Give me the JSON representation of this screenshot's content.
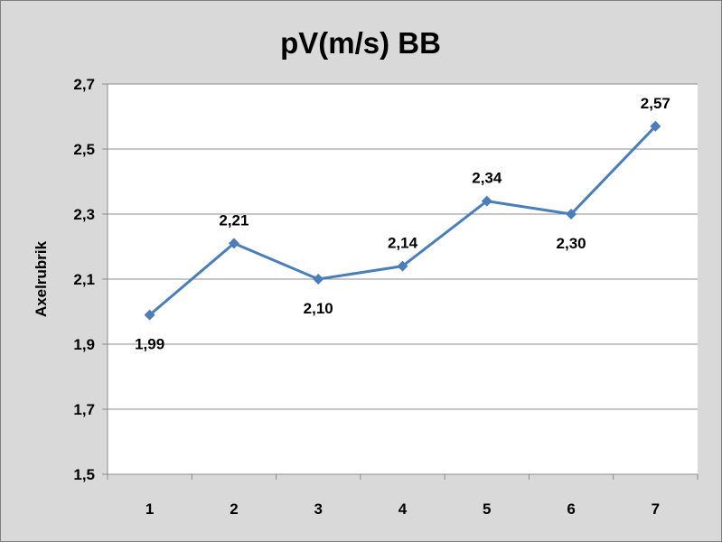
{
  "chart_data": {
    "type": "line",
    "title": "pV(m/s) BB",
    "xlabel": "",
    "ylabel": "Axelrubrik",
    "categories": [
      "1",
      "2",
      "3",
      "4",
      "5",
      "6",
      "7"
    ],
    "series": [
      {
        "values": [
          1.99,
          2.21,
          2.1,
          2.14,
          2.34,
          2.3,
          2.57
        ],
        "labels": [
          "1,99",
          "2,21",
          "2,10",
          "2,14",
          "2,34",
          "2,30",
          "2,57"
        ],
        "color": "#4a7ebb"
      }
    ],
    "ylim": [
      1.5,
      2.7
    ],
    "yticks": [
      1.5,
      1.7,
      1.9,
      2.1,
      2.3,
      2.5,
      2.7
    ],
    "ytick_labels": [
      "1,5",
      "1,7",
      "1,9",
      "2,1",
      "2,3",
      "2,5",
      "2,7"
    ],
    "grid": true,
    "legend": "none",
    "colors": {
      "chart_background": "#d9d9d9",
      "plot_background": "#ffffff",
      "gridline": "#8c8c8c"
    }
  }
}
